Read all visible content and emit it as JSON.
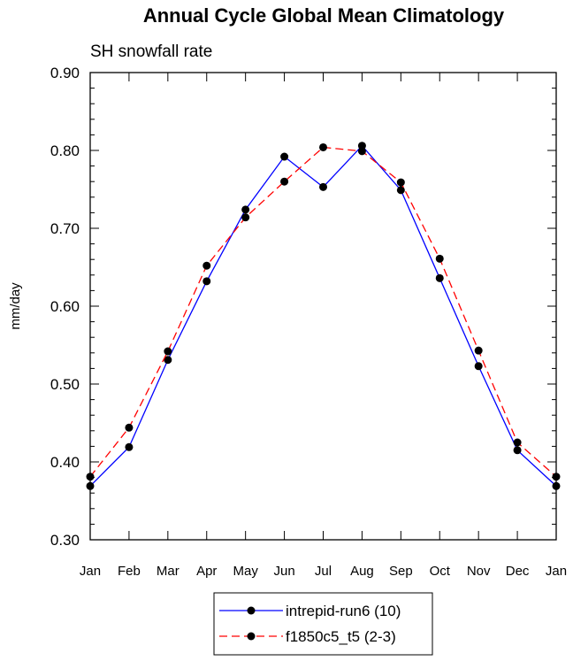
{
  "chart_data": {
    "type": "line",
    "title": "Annual Cycle Global Mean Climatology",
    "subtitle": "SH snowfall rate",
    "xlabel": "",
    "ylabel": "mm/day",
    "ylim": [
      0.3,
      0.9
    ],
    "yticks": [
      "0.30",
      "0.40",
      "0.50",
      "0.60",
      "0.70",
      "0.80",
      "0.90"
    ],
    "categories": [
      "Jan",
      "Feb",
      "Mar",
      "Apr",
      "May",
      "Jun",
      "Jul",
      "Aug",
      "Sep",
      "Oct",
      "Nov",
      "Dec",
      "Jan"
    ],
    "grid": false,
    "legend_position": "bottom-center",
    "series": [
      {
        "name": "intrepid-run6 (10)",
        "color": "#0000ff",
        "dash": "solid",
        "values": [
          0.369,
          0.419,
          0.531,
          0.632,
          0.724,
          0.792,
          0.753,
          0.806,
          0.749,
          0.636,
          0.523,
          0.415,
          0.369
        ]
      },
      {
        "name": "f1850c5_t5 (2-3)",
        "color": "#ff0000",
        "dash": "dashed",
        "values": [
          0.381,
          0.444,
          0.542,
          0.652,
          0.714,
          0.76,
          0.804,
          0.799,
          0.759,
          0.661,
          0.543,
          0.425,
          0.381
        ]
      }
    ]
  }
}
